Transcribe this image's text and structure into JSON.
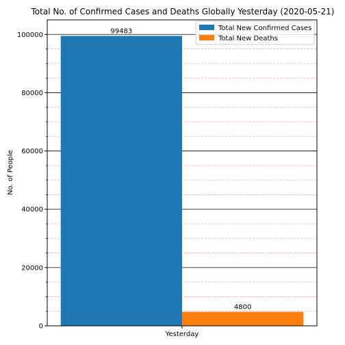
{
  "chart_data": {
    "type": "bar",
    "title": "Total No. of Confirmed Cases and Deaths Globally Yesterday (2020-05-21)",
    "xlabel": "",
    "ylabel": "No. of People",
    "categories": [
      "Yesterday"
    ],
    "series": [
      {
        "name": "Total New Confirmed Cases",
        "values": [
          99483
        ],
        "color": "#1f77b4"
      },
      {
        "name": "Total New Deaths",
        "values": [
          4800
        ],
        "color": "#ff7f0e"
      }
    ],
    "ylim": [
      0,
      105000
    ],
    "yticks": [
      0,
      20000,
      40000,
      60000,
      80000,
      100000
    ],
    "ytick_labels": [
      "0",
      "20000",
      "40000",
      "60000",
      "80000",
      "100000"
    ],
    "data_labels": [
      "99483",
      "4800"
    ],
    "grid_major": true,
    "grid_minor": true,
    "legend_position": "top-right"
  }
}
